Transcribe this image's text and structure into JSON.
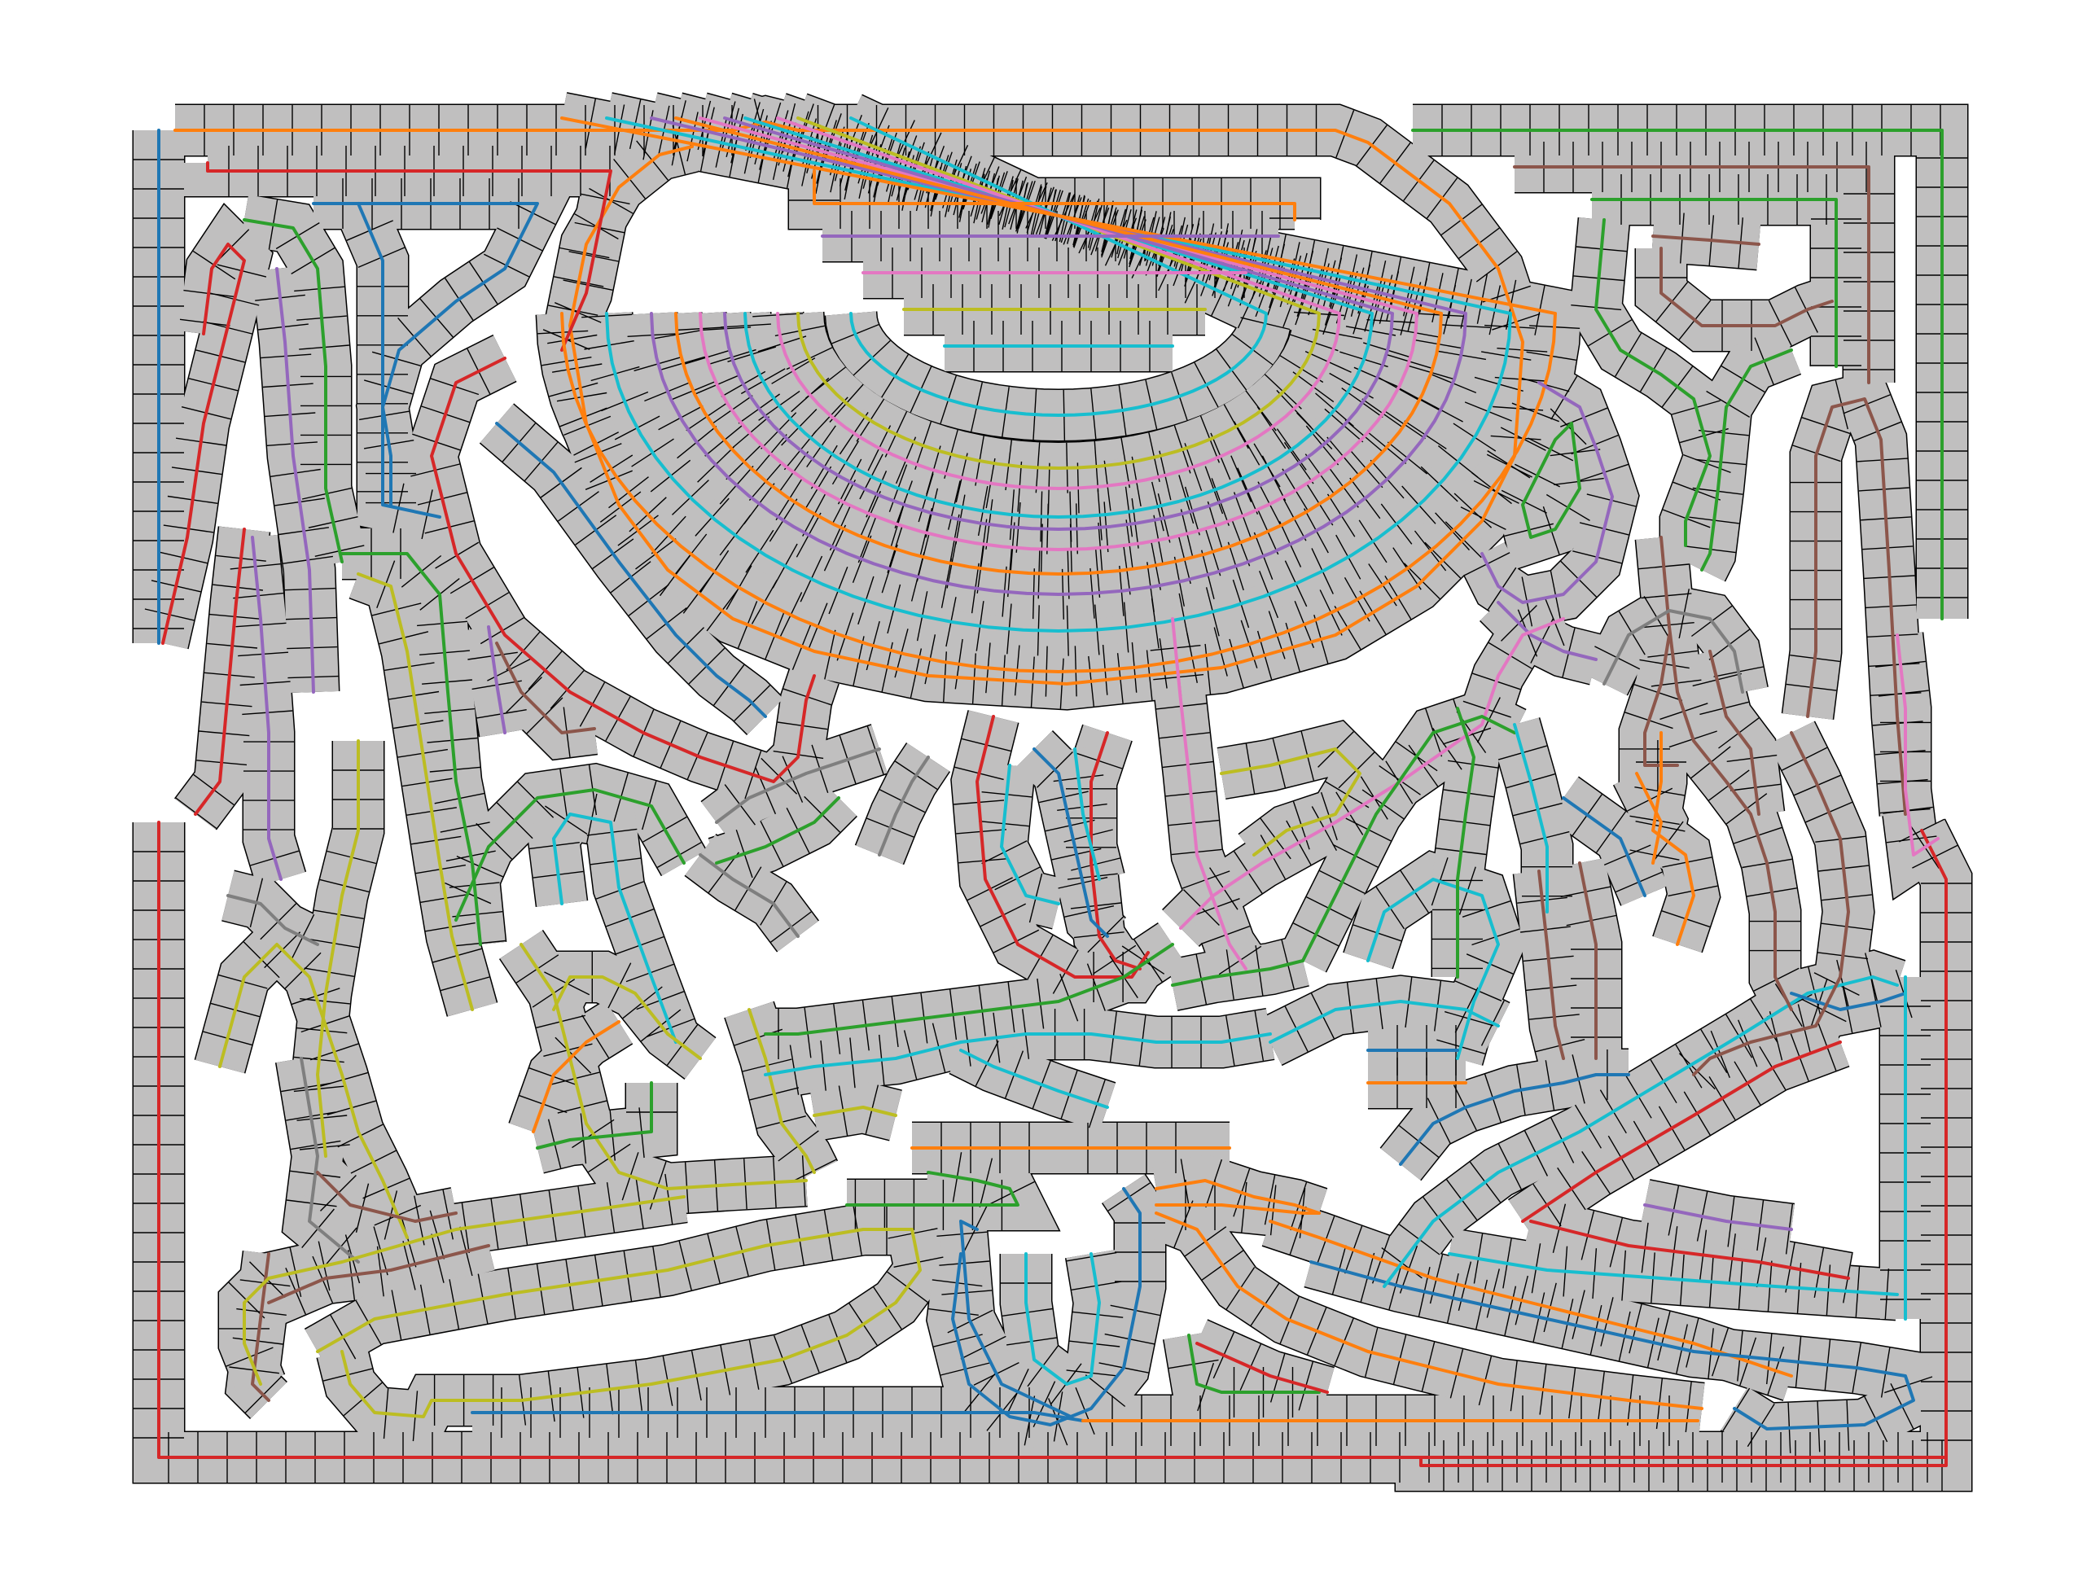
{
  "figure": {
    "kind": "tile-strip packing diagram",
    "tile_color": "#c0bfbf",
    "edge_color": "#000000",
    "background": "#ffffff"
  },
  "palette": {
    "blue": "#1f77b4",
    "orange": "#ff7f0e",
    "green": "#2ca02c",
    "red": "#d62728",
    "purple": "#9467bd",
    "brown": "#8c564b",
    "pink": "#e377c2",
    "gray": "#7f7f7f",
    "olive": "#bcbd22",
    "cyan": "#17becf"
  },
  "strip_count": 52
}
